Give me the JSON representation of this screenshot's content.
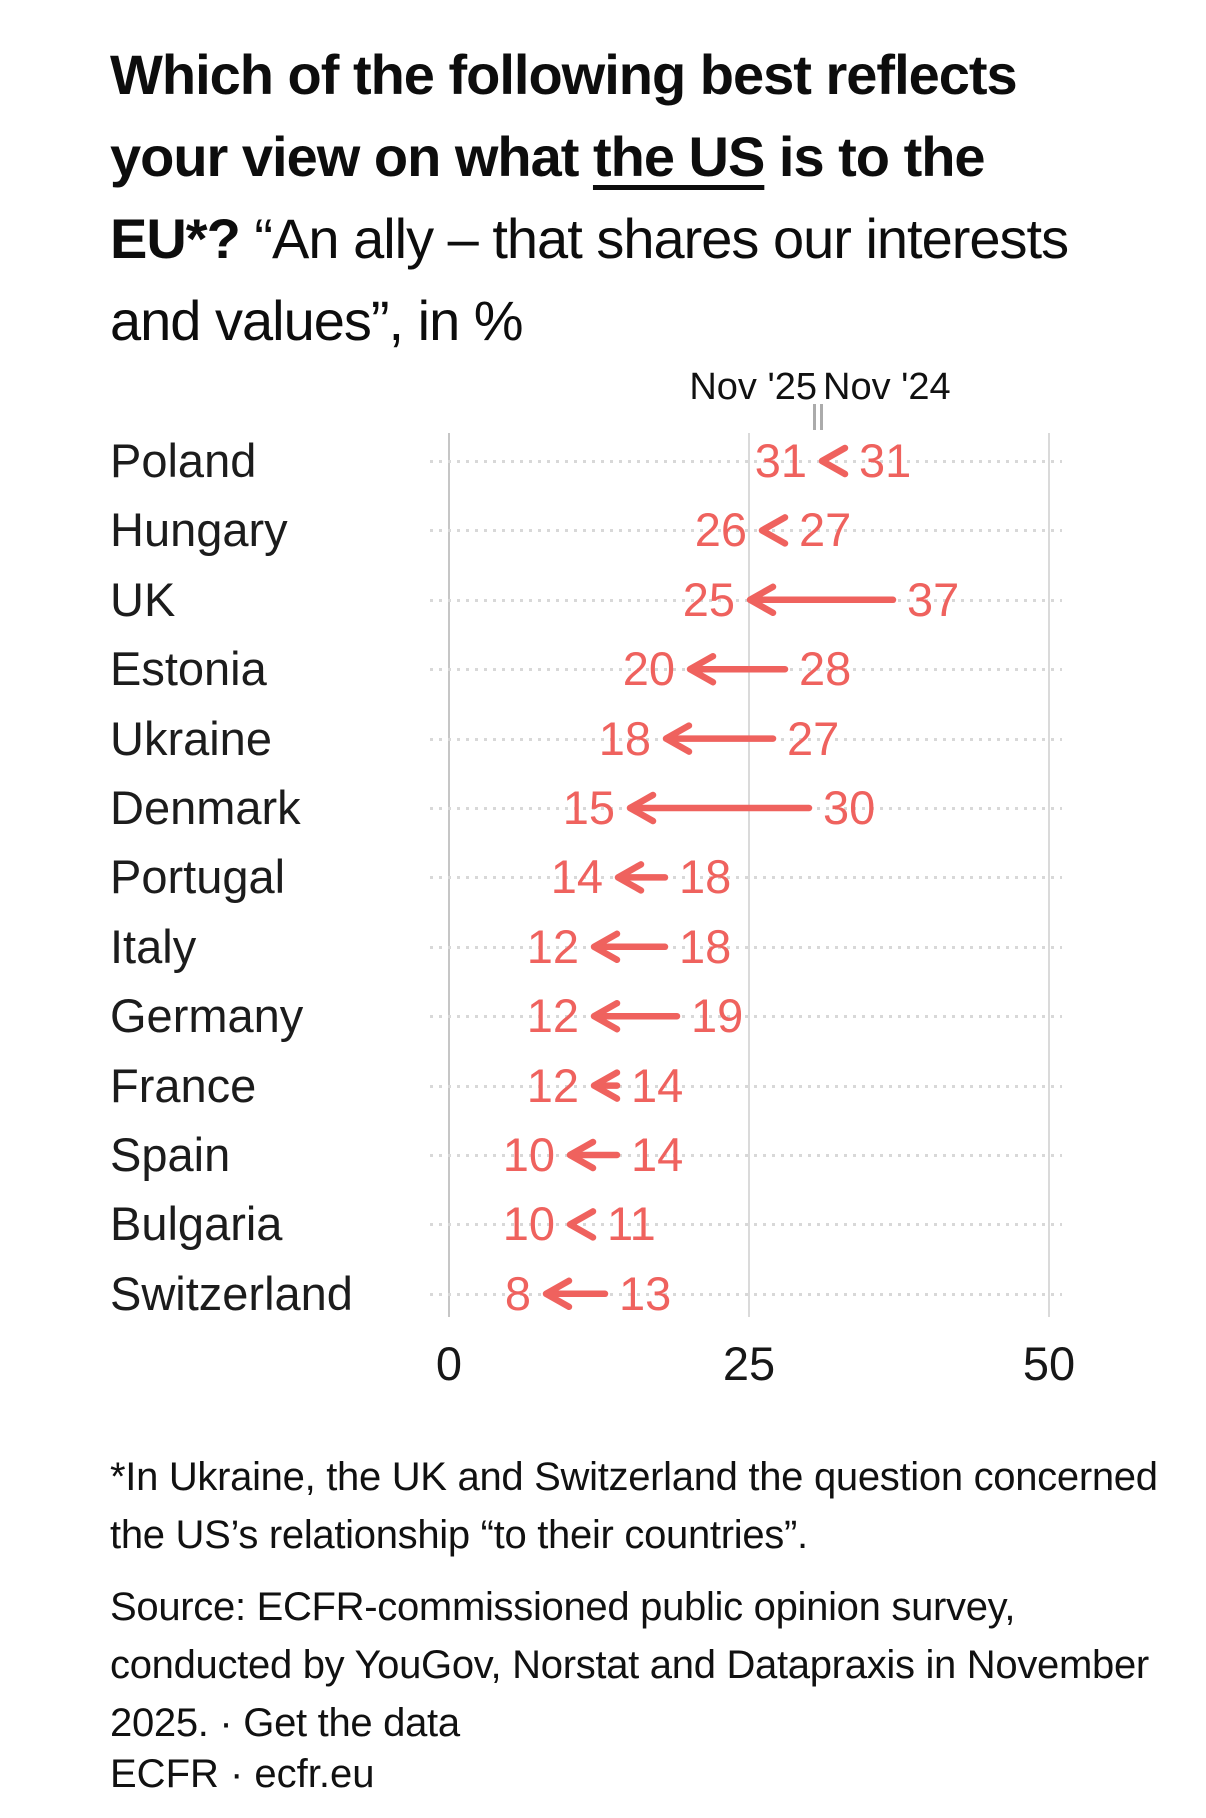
{
  "title": {
    "lines": [
      {
        "segments": [
          {
            "text": "Which of the following best reflects",
            "style": "bold"
          }
        ]
      },
      {
        "segments": [
          {
            "text": "your view on what ",
            "style": "bold"
          },
          {
            "text": "the US",
            "style": "bold-underline"
          },
          {
            "text": " is to the",
            "style": "bold"
          }
        ]
      },
      {
        "segments": [
          {
            "text": "EU*? ",
            "style": "bold"
          },
          {
            "text": "“An ally – that shares our interests",
            "style": "regular"
          }
        ]
      },
      {
        "segments": [
          {
            "text": "and values”, in %",
            "style": "regular"
          }
        ]
      }
    ]
  },
  "legend": {
    "new_label": "Nov '25",
    "old_label": "Nov '24"
  },
  "chart_data": {
    "type": "arrow",
    "description": "Arrow (dumbbell) plot: values move from Nov '24 to Nov '25, in %",
    "categories": [
      "Poland",
      "Hungary",
      "UK",
      "Estonia",
      "Ukraine",
      "Denmark",
      "Portugal",
      "Italy",
      "Germany",
      "France",
      "Spain",
      "Bulgaria",
      "Switzerland"
    ],
    "series": [
      {
        "name": "Nov '25",
        "values": [
          31,
          26,
          25,
          20,
          18,
          15,
          14,
          12,
          12,
          12,
          10,
          10,
          8
        ]
      },
      {
        "name": "Nov '24",
        "values": [
          31,
          27,
          37,
          28,
          27,
          30,
          18,
          18,
          19,
          14,
          14,
          11,
          13
        ]
      }
    ],
    "xlabel": "",
    "ylabel": "",
    "xlim": [
      0,
      50
    ],
    "xticks": [
      "0",
      "25",
      "50"
    ],
    "grid": "solid vertical lines at x ticks, dotted horizontal line per category row",
    "legend_position": "top-right above plot",
    "arrow_color": "#ef625e",
    "gridline_color": "#d8d8d8"
  },
  "footnote": {
    "lines": [
      "*In Ukraine, the UK and Switzerland the question concerned",
      "the US’s relationship “to their countries”."
    ]
  },
  "source": {
    "lines": [
      "Source: ECFR-commissioned public opinion survey,",
      "conducted by YouGov, Norstat and Datapraxis in November",
      "2025. · "
    ],
    "link_label": "Get the data"
  },
  "branding": "ECFR · ecfr.eu"
}
